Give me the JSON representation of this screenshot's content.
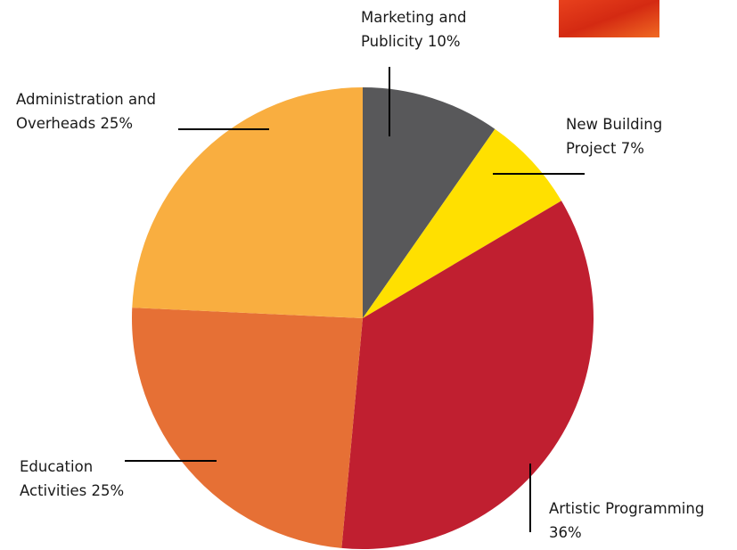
{
  "chart_data": {
    "type": "pie",
    "categories": [
      "Marketing and Publicity",
      "New Building Project",
      "Artistic Programming",
      "Education Activities",
      "Administration and Overheads"
    ],
    "values": [
      10,
      7,
      36,
      25,
      25
    ],
    "value_labels": [
      "10%",
      "7%",
      "36%",
      "25%",
      "25%"
    ],
    "colors": [
      "#58585a",
      "#ffe000",
      "#c01f30",
      "#e67035",
      "#f9ae40"
    ]
  }
}
